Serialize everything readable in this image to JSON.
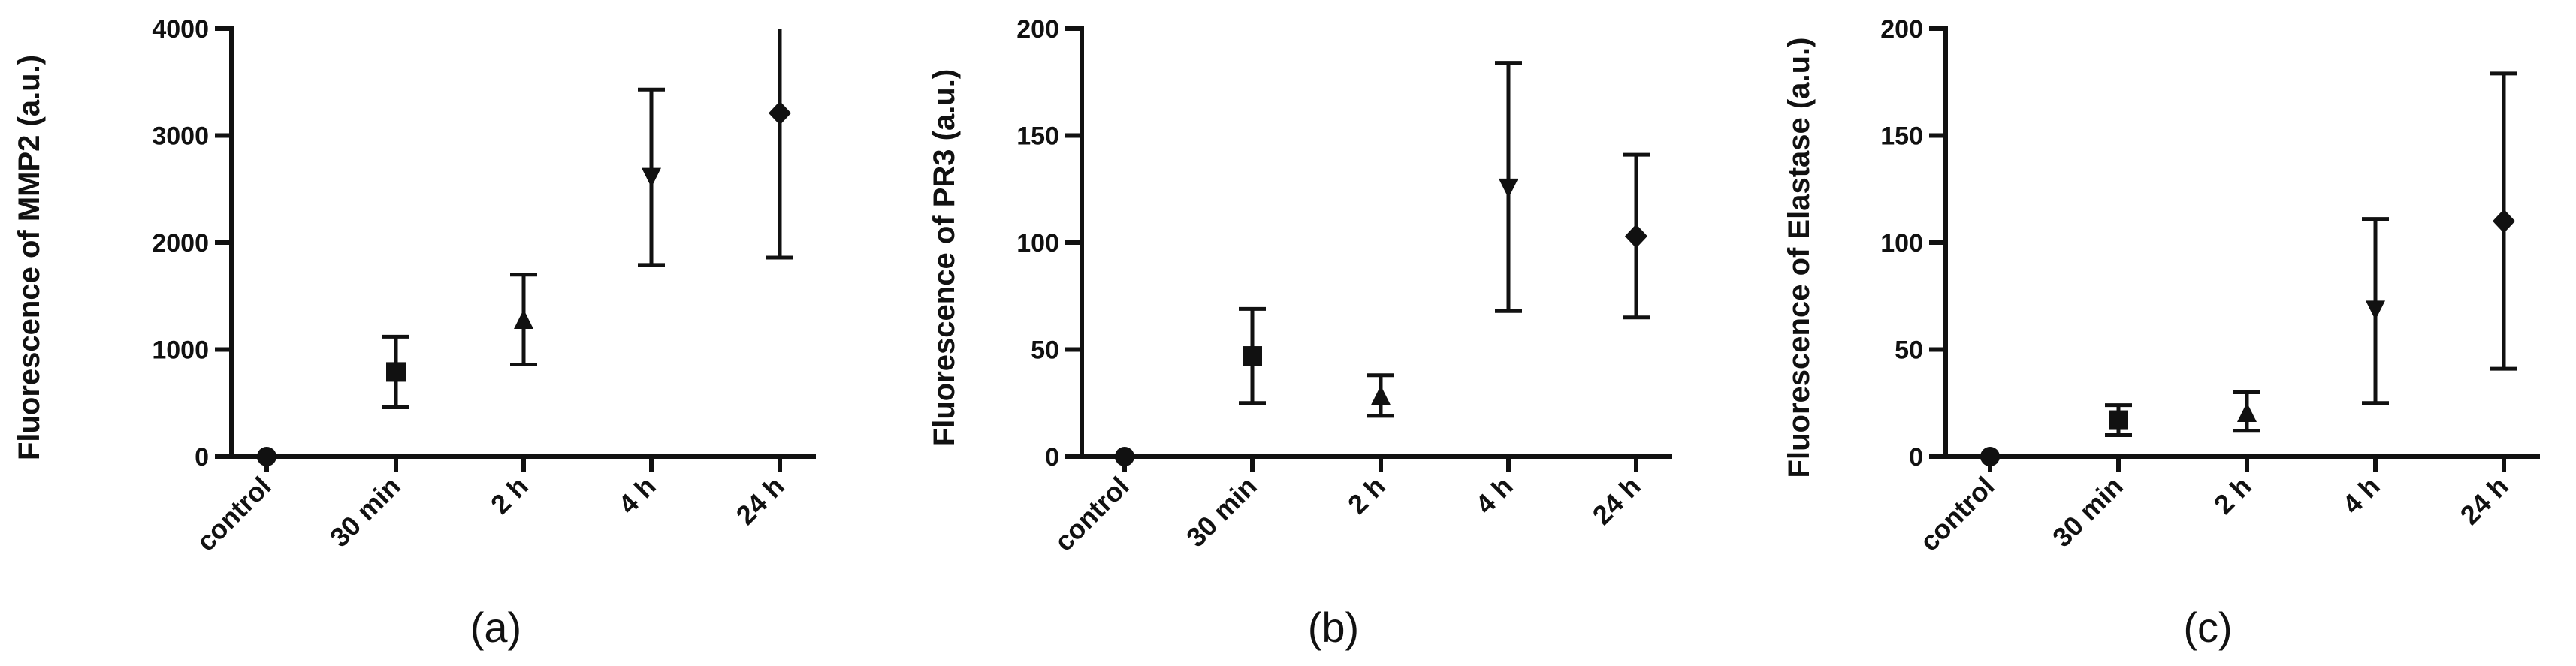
{
  "chart_data": [
    {
      "type": "scatter",
      "panel_label": "(a)",
      "ylabel": "Fluorescence of MMP2  (a.u.)",
      "categories": [
        "control",
        "30 min",
        "2 h",
        "4 h",
        "24 h"
      ],
      "markers": [
        "circle",
        "square",
        "triangle-up",
        "triangle-down",
        "diamond"
      ],
      "values": [
        0,
        790,
        1270,
        2620,
        3210
      ],
      "error_low": [
        0,
        460,
        860,
        1790,
        1860
      ],
      "error_high": [
        0,
        1120,
        1700,
        3430,
        4000
      ],
      "ylim": [
        0,
        4000
      ],
      "yticks": [
        0,
        1000,
        2000,
        3000,
        4000
      ],
      "grid": false
    },
    {
      "type": "scatter",
      "panel_label": "(b)",
      "ylabel": "Fluorescence of PR3  (a.u.)",
      "categories": [
        "control",
        "30 min",
        "2 h",
        "4 h",
        "24 h"
      ],
      "markers": [
        "circle",
        "square",
        "triangle-up",
        "triangle-down",
        "diamond"
      ],
      "values": [
        0,
        47,
        28,
        126,
        103
      ],
      "error_low": [
        0,
        25,
        19,
        68,
        65
      ],
      "error_high": [
        0,
        69,
        38,
        184,
        141
      ],
      "ylim": [
        0,
        200
      ],
      "yticks": [
        0,
        50,
        100,
        150,
        200
      ],
      "grid": false
    },
    {
      "type": "scatter",
      "panel_label": "(c)",
      "ylabel": "Fluorescence of Elastase  (a.u.)",
      "categories": [
        "control",
        "30 min",
        "2 h",
        "4 h",
        "24 h"
      ],
      "markers": [
        "circle",
        "square",
        "triangle-up",
        "triangle-down",
        "diamond"
      ],
      "values": [
        0,
        17,
        20,
        69,
        110
      ],
      "error_low": [
        0,
        10,
        12,
        25,
        41
      ],
      "error_high": [
        0,
        24,
        30,
        111,
        179
      ],
      "ylim": [
        0,
        200
      ],
      "yticks": [
        0,
        50,
        100,
        150,
        200
      ],
      "grid": false
    }
  ]
}
